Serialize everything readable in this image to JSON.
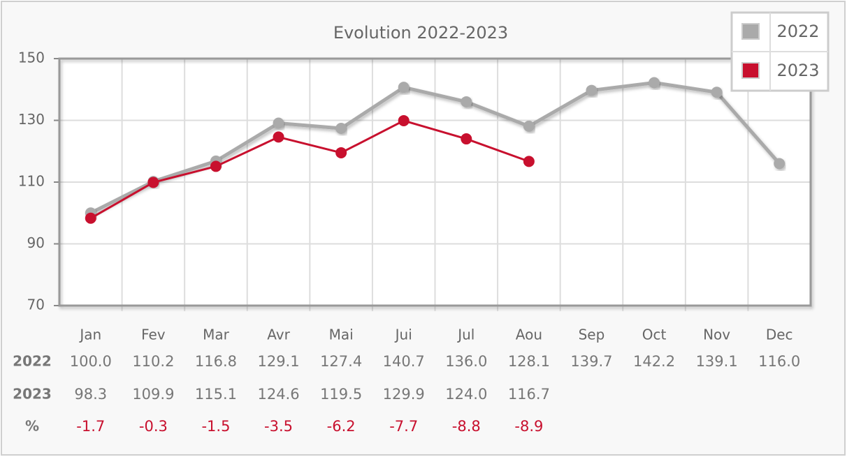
{
  "chart_data": {
    "type": "line",
    "title": "Evolution 2022-2023",
    "categories": [
      "Jan",
      "Fev",
      "Mar",
      "Avr",
      "Mai",
      "Jui",
      "Jul",
      "Aou",
      "Sep",
      "Oct",
      "Nov",
      "Dec"
    ],
    "series": [
      {
        "name": "2022",
        "color": "#aaaaaa",
        "values": [
          100.0,
          110.2,
          116.8,
          129.1,
          127.4,
          140.7,
          136.0,
          128.1,
          139.7,
          142.2,
          139.1,
          116.0
        ],
        "value_labels": [
          "100.0",
          "110.2",
          "116.8",
          "129.1",
          "127.4",
          "140.7",
          "136.0",
          "128.1",
          "139.7",
          "142.2",
          "139.1",
          "116.0"
        ]
      },
      {
        "name": "2023",
        "color": "#c8102e",
        "values": [
          98.3,
          109.9,
          115.1,
          124.6,
          119.5,
          129.9,
          124.0,
          116.7,
          null,
          null,
          null,
          null
        ],
        "value_labels": [
          "98.3",
          "109.9",
          "115.1",
          "124.6",
          "119.5",
          "129.9",
          "124.0",
          "116.7",
          null,
          null,
          null,
          null
        ]
      }
    ],
    "change": {
      "name": "%",
      "color": "#c8102e",
      "values": [
        -1.7,
        -0.3,
        -1.5,
        -3.5,
        -6.2,
        -7.7,
        -8.8,
        -8.9,
        null,
        null,
        null,
        null
      ]
    },
    "ylim": [
      70,
      150
    ],
    "yticks": [
      70,
      90,
      110,
      130,
      150
    ],
    "grid": true,
    "legend": "top-right"
  }
}
